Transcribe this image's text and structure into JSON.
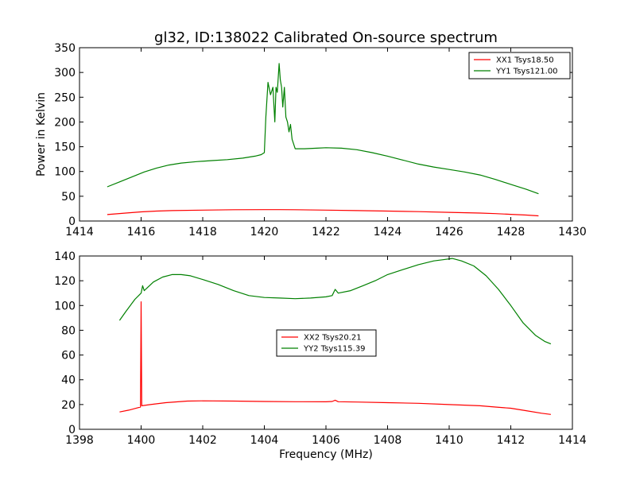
{
  "title": "gl32, ID:138022 Calibrated On-source spectrum",
  "chart_data": [
    {
      "type": "line",
      "xlabel": "",
      "ylabel": "Power in Kelvin",
      "xlim": [
        1414,
        1430
      ],
      "ylim": [
        0,
        350
      ],
      "xticks": [
        1414,
        1416,
        1418,
        1420,
        1422,
        1424,
        1426,
        1428,
        1430
      ],
      "yticks": [
        0,
        50,
        100,
        150,
        200,
        250,
        300,
        350
      ],
      "grid": false,
      "legend_position": "top-right",
      "series": [
        {
          "name": "XX1 Tsys18.50",
          "color": "#ff0000",
          "x": [
            1414.9,
            1415.5,
            1416,
            1416.5,
            1417,
            1418,
            1419,
            1420,
            1420.5,
            1421,
            1422,
            1423,
            1424,
            1425,
            1426,
            1427,
            1427.5,
            1428,
            1428.5,
            1428.9
          ],
          "y": [
            13,
            16,
            18.5,
            20,
            21,
            22,
            22.8,
            23,
            23,
            22.8,
            22,
            21,
            20,
            19,
            17.5,
            16,
            15,
            13.5,
            12,
            10.5
          ]
        },
        {
          "name": "YY1 Tsys121.00",
          "color": "#008000",
          "x": [
            1414.9,
            1415.3,
            1415.7,
            1416.1,
            1416.5,
            1416.9,
            1417.3,
            1417.8,
            1418.3,
            1418.8,
            1419.3,
            1419.7,
            1419.9,
            1420.0,
            1420.05,
            1420.12,
            1420.2,
            1420.28,
            1420.34,
            1420.38,
            1420.42,
            1420.48,
            1420.52,
            1420.56,
            1420.6,
            1420.65,
            1420.7,
            1420.75,
            1420.8,
            1420.85,
            1420.9,
            1421.0,
            1421.3,
            1421.7,
            1422.0,
            1422.5,
            1423.0,
            1423.5,
            1424.0,
            1424.5,
            1425.0,
            1425.5,
            1426.0,
            1426.5,
            1427.0,
            1427.5,
            1428.0,
            1428.5,
            1428.9
          ],
          "y": [
            69,
            79,
            89,
            99,
            107,
            113,
            117,
            120,
            122,
            124,
            127,
            131,
            134,
            138,
            210,
            280,
            255,
            270,
            200,
            270,
            260,
            318,
            285,
            270,
            230,
            270,
            210,
            200,
            180,
            195,
            165,
            146,
            146,
            147,
            148,
            147,
            144,
            138,
            131,
            123,
            115,
            109,
            104,
            99,
            93,
            84,
            74,
            64,
            55
          ]
        }
      ]
    },
    {
      "type": "line",
      "xlabel": "Frequency (MHz)",
      "ylabel": "",
      "xlim": [
        1398,
        1414
      ],
      "ylim": [
        0,
        140
      ],
      "xticks": [
        1398,
        1400,
        1402,
        1404,
        1406,
        1408,
        1410,
        1412,
        1414
      ],
      "yticks": [
        0,
        20,
        40,
        60,
        80,
        100,
        120,
        140
      ],
      "grid": false,
      "legend_position": "center",
      "series": [
        {
          "name": "XX2 Tsys20.21",
          "color": "#ff0000",
          "x": [
            1399.3,
            1399.6,
            1399.9,
            1399.98,
            1400.0,
            1400.02,
            1400.3,
            1400.8,
            1401.5,
            1402,
            1403,
            1404,
            1405,
            1406,
            1406.2,
            1406.3,
            1406.4,
            1407,
            1408,
            1409,
            1410,
            1411,
            1411.5,
            1412,
            1412.5,
            1413,
            1413.3
          ],
          "y": [
            14,
            15.5,
            17.5,
            18,
            103,
            19,
            20,
            21.5,
            22.8,
            23,
            22.8,
            22.5,
            22.3,
            22.2,
            22.5,
            23.5,
            22.3,
            22,
            21.5,
            21,
            20,
            19,
            18,
            17,
            15,
            13,
            12
          ]
        },
        {
          "name": "YY2 Tsys115.39",
          "color": "#008000",
          "x": [
            1399.3,
            1399.5,
            1399.8,
            1400.0,
            1400.05,
            1400.1,
            1400.4,
            1400.7,
            1401.0,
            1401.3,
            1401.6,
            1402.0,
            1402.5,
            1403.0,
            1403.5,
            1404.0,
            1404.5,
            1405.0,
            1405.5,
            1406.0,
            1406.2,
            1406.3,
            1406.4,
            1406.8,
            1407.2,
            1407.6,
            1408.0,
            1408.5,
            1409.0,
            1409.5,
            1409.8,
            1410.1,
            1410.4,
            1410.8,
            1411.2,
            1411.6,
            1412.0,
            1412.4,
            1412.8,
            1413.1,
            1413.3
          ],
          "y": [
            88,
            95,
            105,
            110,
            116,
            112,
            119,
            123,
            125,
            125,
            124,
            121,
            117,
            112,
            108,
            106.5,
            106,
            105.5,
            106,
            107,
            108,
            113,
            110,
            112,
            116,
            120,
            125,
            129,
            133,
            136,
            137,
            138,
            136,
            132,
            124,
            113,
            100,
            86,
            76,
            71,
            69
          ]
        }
      ]
    }
  ]
}
